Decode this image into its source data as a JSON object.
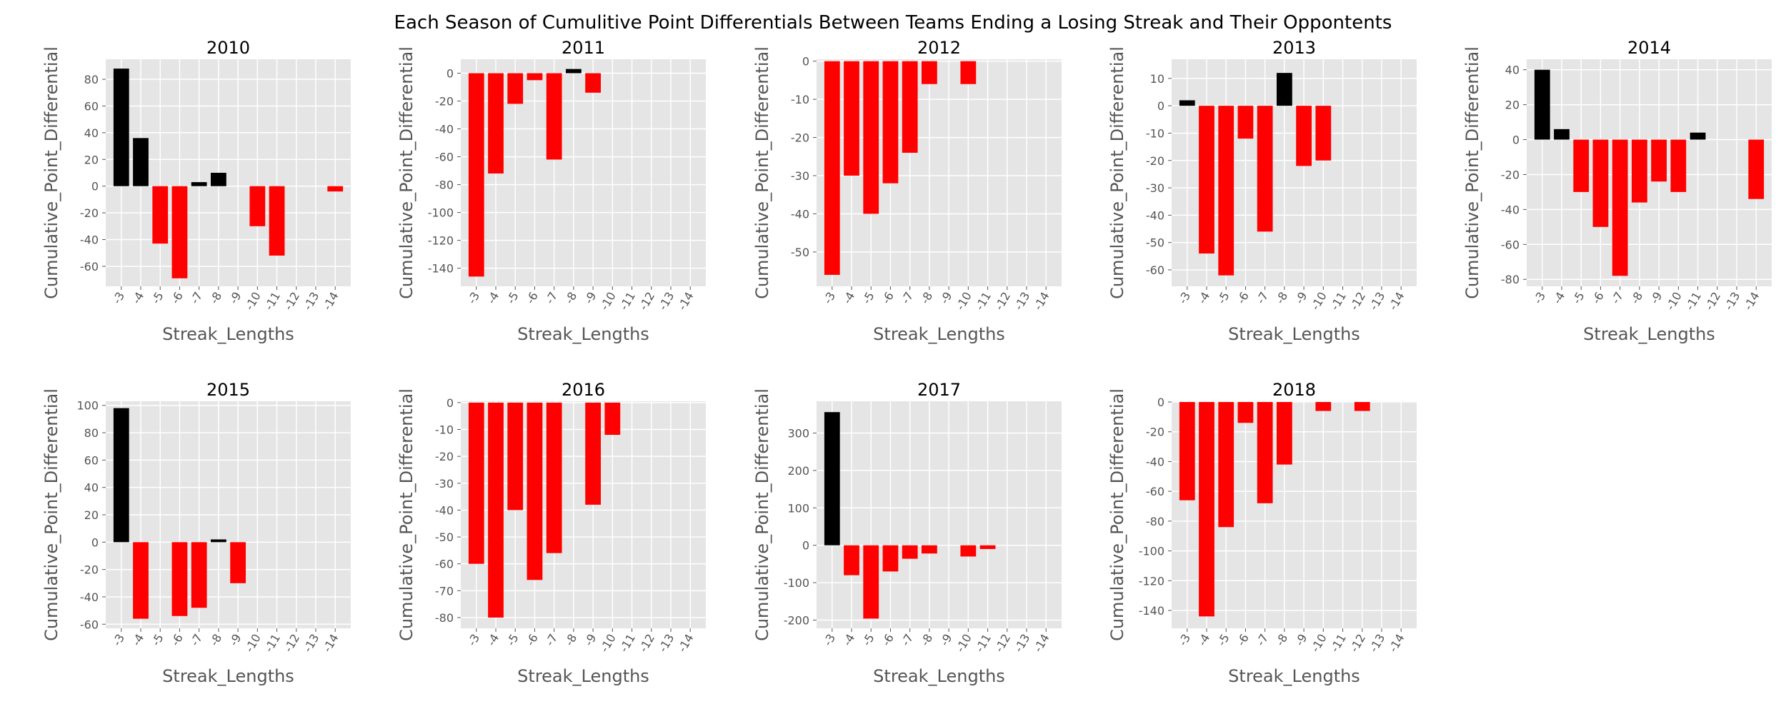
{
  "suptitle": "Each Season of Cumulitive Point Differentials Between Teams Ending a Losing Streak and Their Oppontents",
  "colors": {
    "positive": "#000000",
    "negative": "#ff0000",
    "panel_bg": "#e5e5e5",
    "grid": "#ffffff",
    "text": "#555555"
  },
  "chart_data": [
    {
      "type": "bar",
      "title": "2010",
      "xlabel": "Streak_Lengths",
      "ylabel": "Cumulative_Point_Differential",
      "categories": [
        "-3",
        "-4",
        "-5",
        "-6",
        "-7",
        "-8",
        "-9",
        "-10",
        "-11",
        "-12",
        "-13",
        "-14"
      ],
      "values": [
        88,
        36,
        -43,
        -69,
        3,
        10,
        0,
        -30,
        -52,
        0,
        0,
        -4
      ],
      "ylim": [
        -75,
        95
      ],
      "yticks": [
        -60,
        -40,
        -20,
        0,
        20,
        40,
        60,
        80
      ]
    },
    {
      "type": "bar",
      "title": "2011",
      "xlabel": "Streak_Lengths",
      "ylabel": "Cumulative_Point_Differential",
      "categories": [
        "-3",
        "-4",
        "-5",
        "-6",
        "-7",
        "-8",
        "-9",
        "-10",
        "-11",
        "-12",
        "-13",
        "-14"
      ],
      "values": [
        -146,
        -72,
        -22,
        -5,
        -62,
        3,
        -14,
        0,
        0,
        0,
        0,
        0
      ],
      "ylim": [
        -153,
        10
      ],
      "yticks": [
        -140,
        -120,
        -100,
        -80,
        -60,
        -40,
        -20,
        0
      ]
    },
    {
      "type": "bar",
      "title": "2012",
      "xlabel": "Streak_Lengths",
      "ylabel": "Cumulative_Point_Differential",
      "categories": [
        "-3",
        "-4",
        "-5",
        "-6",
        "-7",
        "-8",
        "-9",
        "-10",
        "-11",
        "-12",
        "-13",
        "-14"
      ],
      "values": [
        -56,
        -30,
        -40,
        -32,
        -24,
        -6,
        0,
        -6,
        0,
        0,
        0,
        0
      ],
      "ylim": [
        -59,
        0.5
      ],
      "yticks": [
        -50,
        -40,
        -30,
        -20,
        -10,
        0
      ]
    },
    {
      "type": "bar",
      "title": "2013",
      "xlabel": "Streak_Lengths",
      "ylabel": "Cumulative_Point_Differential",
      "categories": [
        "-3",
        "-4",
        "-5",
        "-6",
        "-7",
        "-8",
        "-9",
        "-10",
        "-11",
        "-12",
        "-13",
        "-14"
      ],
      "values": [
        2,
        -54,
        -62,
        -12,
        -46,
        12,
        -22,
        -20,
        0,
        0,
        0,
        0
      ],
      "ylim": [
        -66,
        17
      ],
      "yticks": [
        -60,
        -50,
        -40,
        -30,
        -20,
        -10,
        0,
        10
      ]
    },
    {
      "type": "bar",
      "title": "2014",
      "xlabel": "Streak_Lengths",
      "ylabel": "Cumulative_Point_Differential",
      "categories": [
        "-3",
        "-4",
        "-5",
        "-6",
        "-7",
        "-8",
        "-9",
        "-10",
        "-11",
        "-12",
        "-13",
        "-14"
      ],
      "values": [
        40,
        6,
        -30,
        -50,
        -78,
        -36,
        -24,
        -30,
        4,
        0,
        0,
        -34
      ],
      "ylim": [
        -84,
        46
      ],
      "yticks": [
        -80,
        -60,
        -40,
        -20,
        0,
        20,
        40
      ]
    },
    {
      "type": "bar",
      "title": "2015",
      "xlabel": "Streak_Lengths",
      "ylabel": "Cumulative_Point_Differential",
      "categories": [
        "-3",
        "-4",
        "-5",
        "-6",
        "-7",
        "-8",
        "-9",
        "-10",
        "-11",
        "-12",
        "-13",
        "-14"
      ],
      "values": [
        98,
        -56,
        0,
        -54,
        -48,
        2,
        -30,
        0,
        0,
        0,
        0,
        0
      ],
      "ylim": [
        -63,
        103
      ],
      "yticks": [
        -60,
        -40,
        -20,
        0,
        20,
        40,
        60,
        80,
        100
      ]
    },
    {
      "type": "bar",
      "title": "2016",
      "xlabel": "Streak_Lengths",
      "ylabel": "Cumulative_Point_Differential",
      "categories": [
        "-3",
        "-4",
        "-5",
        "-6",
        "-7",
        "-8",
        "-9",
        "-10",
        "-11",
        "-12",
        "-13",
        "-14"
      ],
      "values": [
        -60,
        -80,
        -40,
        -66,
        -56,
        0,
        -38,
        -12,
        0,
        0,
        0,
        0
      ],
      "ylim": [
        -84,
        0.5
      ],
      "yticks": [
        -80,
        -70,
        -60,
        -50,
        -40,
        -30,
        -20,
        -10,
        0
      ]
    },
    {
      "type": "bar",
      "title": "2017",
      "xlabel": "Streak_Lengths",
      "ylabel": "Cumulative_Point_Differential",
      "categories": [
        "-3",
        "-4",
        "-5",
        "-6",
        "-7",
        "-8",
        "-9",
        "-10",
        "-11",
        "-12",
        "-13",
        "-14"
      ],
      "values": [
        356,
        -80,
        -196,
        -70,
        -36,
        -22,
        0,
        -30,
        -10,
        0,
        0,
        0
      ],
      "ylim": [
        -222,
        385
      ],
      "yticks": [
        -200,
        -100,
        0,
        100,
        200,
        300
      ]
    },
    {
      "type": "bar",
      "title": "2018",
      "xlabel": "Streak_Lengths",
      "ylabel": "Cumulative_Point_Differential",
      "categories": [
        "-3",
        "-4",
        "-5",
        "-6",
        "-7",
        "-8",
        "-9",
        "-10",
        "-11",
        "-12",
        "-13",
        "-14"
      ],
      "values": [
        -66,
        -144,
        -84,
        -14,
        -68,
        -42,
        0,
        -6,
        0,
        -6,
        0,
        0
      ],
      "ylim": [
        -152,
        0.5
      ],
      "yticks": [
        -140,
        -120,
        -100,
        -80,
        -60,
        -40,
        -20,
        0
      ]
    }
  ]
}
